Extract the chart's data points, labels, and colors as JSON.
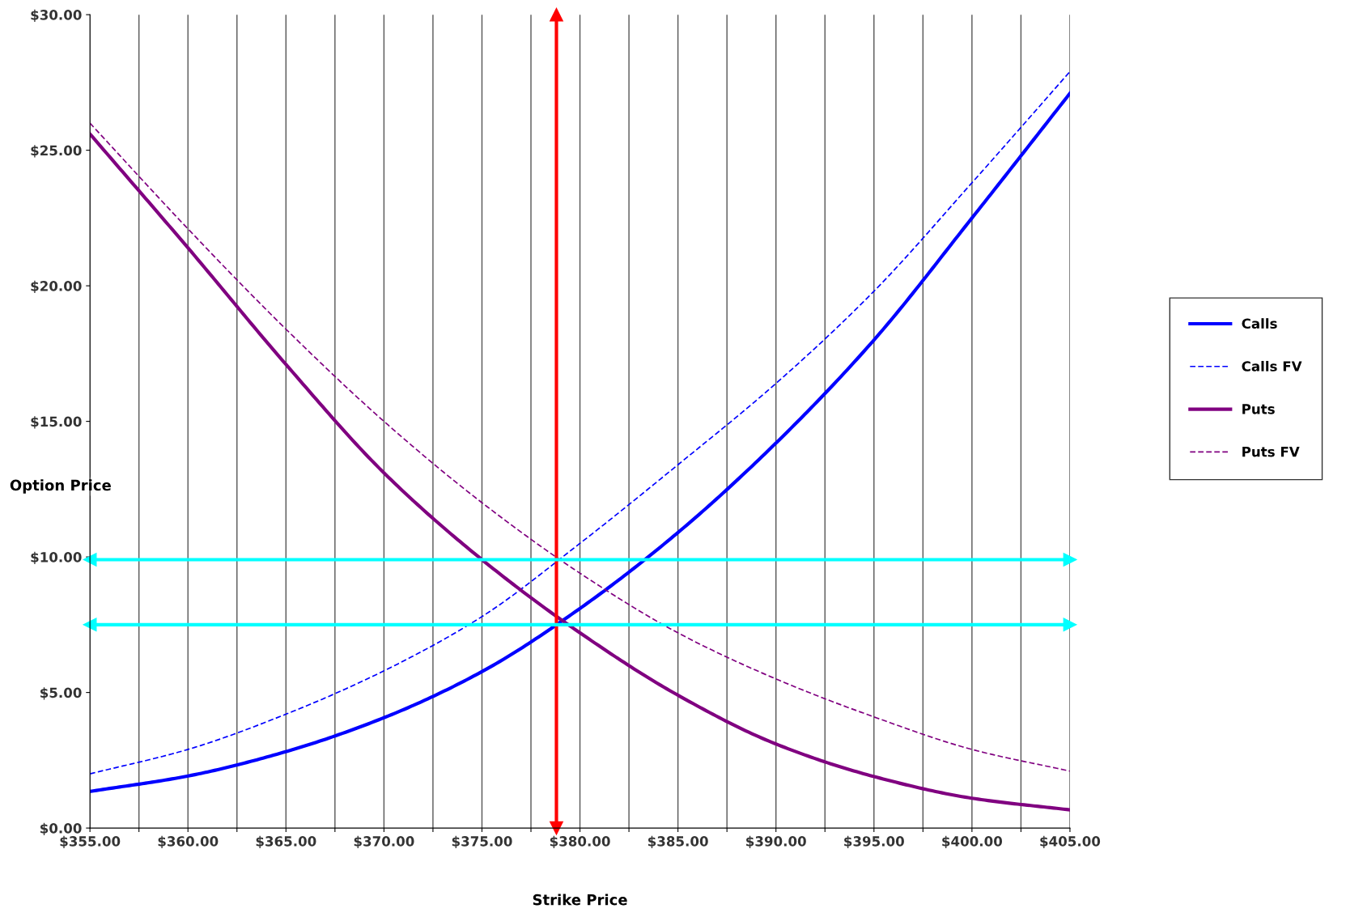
{
  "chart_data": {
    "type": "line",
    "xlabel": "Strike Price",
    "ylabel": "Option Price",
    "x": [
      355,
      360,
      365,
      370,
      375,
      380,
      385,
      390,
      395,
      400,
      405
    ],
    "series": [
      {
        "name": "Calls",
        "color": "#0000ff",
        "line_style": "solid",
        "values": [
          1.35,
          1.92,
          2.82,
          4.07,
          5.77,
          8.1,
          10.9,
          14.2,
          18.0,
          22.5,
          27.1
        ]
      },
      {
        "name": "Calls FV",
        "color": "#0000ff",
        "line_style": "dashed",
        "values": [
          2.0,
          2.9,
          4.2,
          5.8,
          7.8,
          10.5,
          13.4,
          16.4,
          19.8,
          23.8,
          27.9
        ]
      },
      {
        "name": "Puts",
        "color": "#800080",
        "line_style": "solid",
        "values": [
          25.6,
          21.4,
          17.1,
          13.1,
          9.9,
          7.2,
          4.9,
          3.1,
          1.9,
          1.1,
          0.67
        ]
      },
      {
        "name": "Puts FV",
        "color": "#800080",
        "line_style": "dashed",
        "values": [
          26.0,
          22.1,
          18.4,
          15.0,
          12.0,
          9.4,
          7.2,
          5.5,
          4.1,
          2.9,
          2.1
        ]
      }
    ],
    "xlim": [
      355,
      405
    ],
    "xticks": [
      {
        "value": 355,
        "label": "$355.00"
      },
      {
        "value": 357.5,
        "label": null
      },
      {
        "value": 360,
        "label": "$360.00"
      },
      {
        "value": 362.5,
        "label": null
      },
      {
        "value": 365,
        "label": "$365.00"
      },
      {
        "value": 367.5,
        "label": null
      },
      {
        "value": 370,
        "label": "$370.00"
      },
      {
        "value": 372.5,
        "label": null
      },
      {
        "value": 375,
        "label": "$375.00"
      },
      {
        "value": 377.5,
        "label": null
      },
      {
        "value": 380,
        "label": "$380.00"
      },
      {
        "value": 382.5,
        "label": null
      },
      {
        "value": 385,
        "label": "$385.00"
      },
      {
        "value": 387.5,
        "label": null
      },
      {
        "value": 390,
        "label": "$390.00"
      },
      {
        "value": 392.5,
        "label": null
      },
      {
        "value": 395,
        "label": "$395.00"
      },
      {
        "value": 397.5,
        "label": null
      },
      {
        "value": 400,
        "label": "$400.00"
      },
      {
        "value": 402.5,
        "label": null
      },
      {
        "value": 405,
        "label": "$405.00"
      }
    ],
    "ylim": [
      0,
      30
    ],
    "yticks": [
      {
        "value": 0,
        "label": "$0.00"
      },
      {
        "value": 5,
        "label": "$5.00"
      },
      {
        "value": 10,
        "label": "$10.00"
      },
      {
        "value": 15,
        "label": "$15.00"
      },
      {
        "value": 20,
        "label": "$20.00"
      },
      {
        "value": 25,
        "label": "$25.00"
      },
      {
        "value": 30,
        "label": "$30.00"
      }
    ],
    "ref_lines": [
      {
        "axis": "x",
        "value": 378.8,
        "color": "#ff0000"
      },
      {
        "axis": "y",
        "value": 9.9,
        "color": "#00ffff"
      },
      {
        "axis": "y",
        "value": 7.5,
        "color": "#00ffff"
      }
    ],
    "grid": "x",
    "legend": "right"
  }
}
